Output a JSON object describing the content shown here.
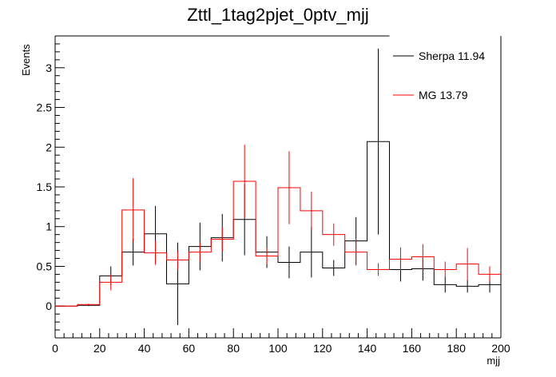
{
  "chart_data": {
    "type": "histogram",
    "title": "Zttl_1tag2pjet_0ptv_mjj",
    "xlabel": "mjj",
    "ylabel": "Events",
    "xlim": [
      0,
      200
    ],
    "ylim": [
      -0.4,
      3.4
    ],
    "x_ticks": [
      0,
      20,
      40,
      60,
      80,
      100,
      120,
      140,
      160,
      180,
      200
    ],
    "y_ticks": [
      0,
      0.5,
      1,
      1.5,
      2,
      2.5,
      3
    ],
    "x_tick_labels": [
      "0",
      "20",
      "40",
      "60",
      "80",
      "100",
      "120",
      "140",
      "160",
      "180",
      "200"
    ],
    "y_tick_labels": [
      "0",
      "0.5",
      "1",
      "1.5",
      "2",
      "2.5",
      "3"
    ],
    "bin_edges": [
      0,
      10,
      20,
      30,
      40,
      50,
      60,
      70,
      80,
      90,
      100,
      110,
      120,
      130,
      140,
      150,
      160,
      170,
      180,
      190,
      200
    ],
    "legend_position": "top-right",
    "series": [
      {
        "name": "Sherpa 11.94",
        "color": "#000000",
        "values": [
          0,
          0.01,
          0.38,
          0.68,
          0.91,
          0.28,
          0.75,
          0.86,
          1.09,
          0.68,
          0.55,
          0.68,
          0.48,
          0.82,
          2.07,
          0.46,
          0.47,
          0.27,
          0.25,
          0.27
        ],
        "errors": [
          0,
          0.01,
          0.12,
          0.17,
          0.35,
          0.52,
          0.3,
          0.3,
          0.45,
          0.2,
          0.2,
          0.32,
          0.1,
          0.3,
          1.17,
          0.15,
          0.15,
          0.1,
          0.08,
          0.1
        ]
      },
      {
        "name": "MG 13.79",
        "color": "#ff0000",
        "values": [
          0,
          0.02,
          0.3,
          1.21,
          0.67,
          0.58,
          0.68,
          0.84,
          1.57,
          0.63,
          1.49,
          1.2,
          0.9,
          0.68,
          0.46,
          0.59,
          0.62,
          0.46,
          0.53,
          0.4
        ],
        "errors": [
          0,
          0.01,
          0.1,
          0.4,
          0.15,
          0.12,
          0.12,
          0.15,
          0.46,
          0.1,
          0.46,
          0.24,
          0.14,
          0.17,
          0.08,
          0.15,
          0.16,
          0.1,
          0.2,
          0.1
        ]
      }
    ]
  }
}
